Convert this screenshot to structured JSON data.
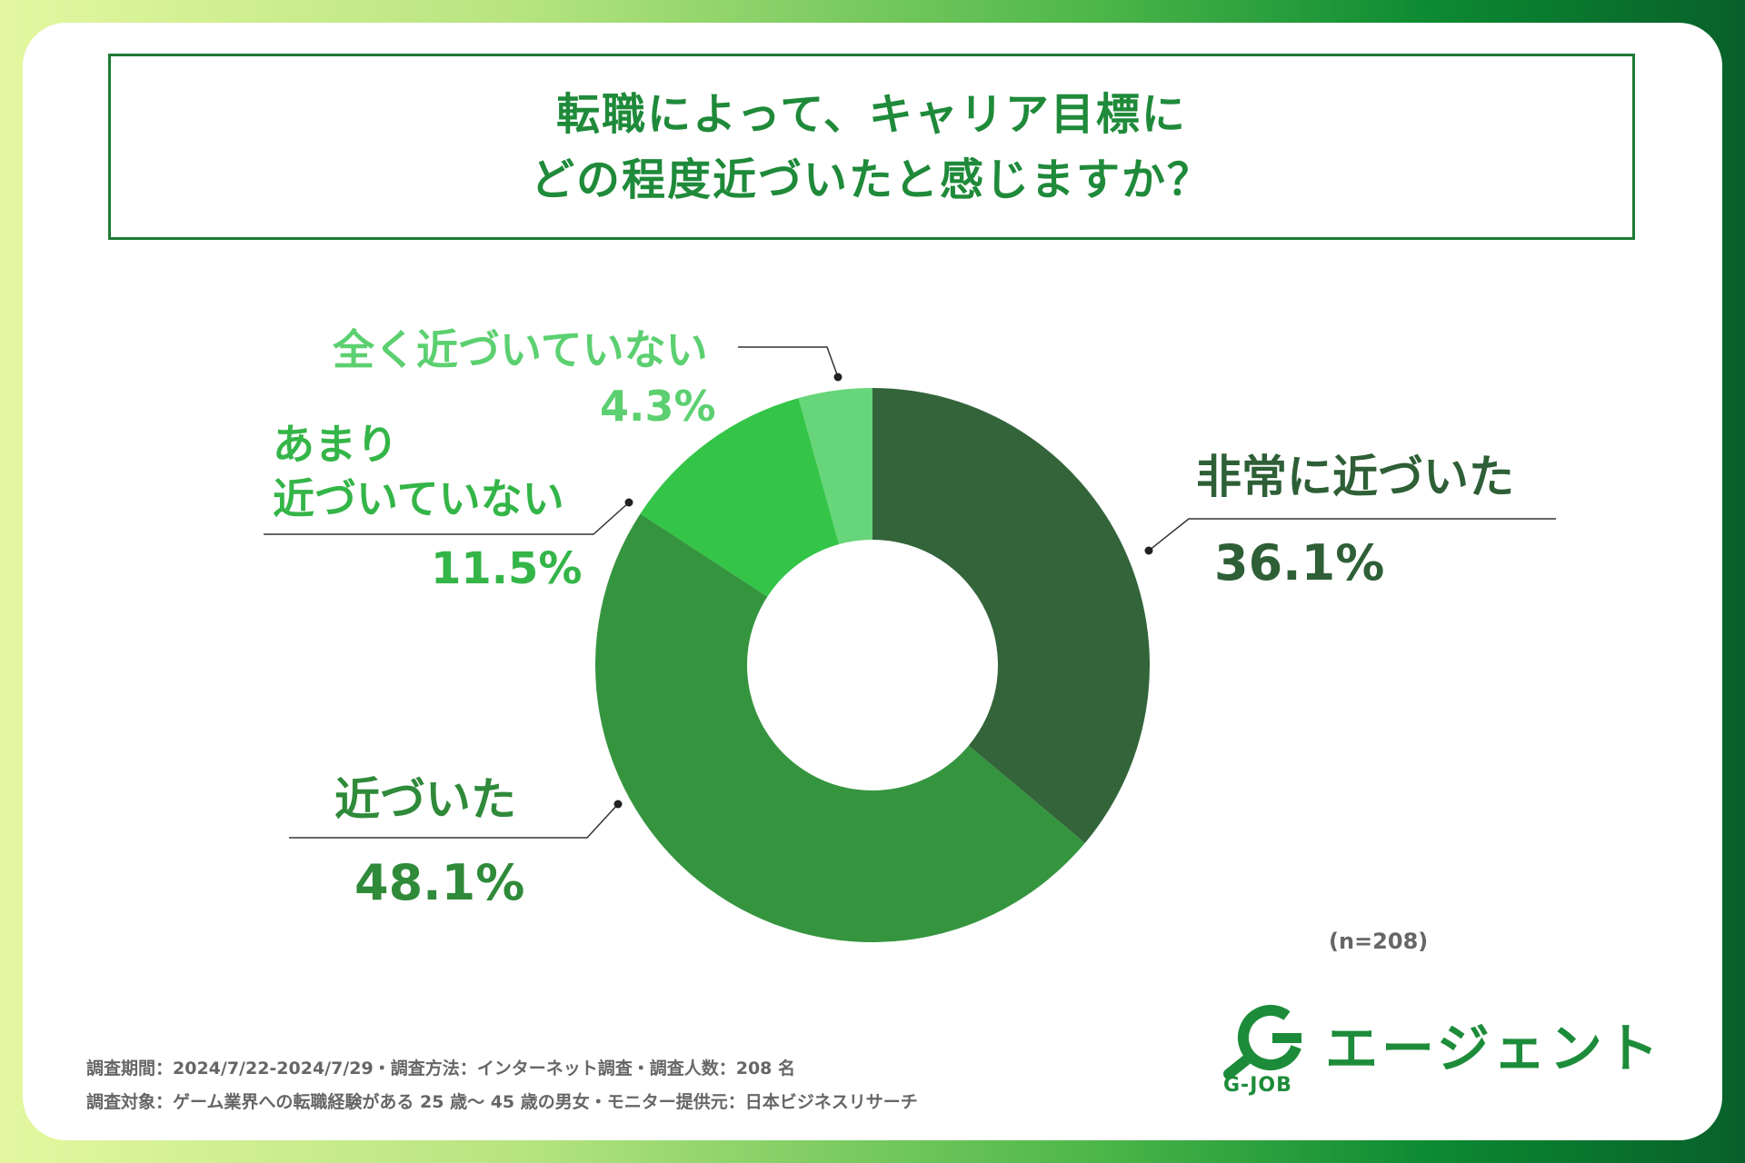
{
  "title": {
    "line1": "転職によって、キャリア目標に",
    "line2": "どの程度近づいたと感じますか？"
  },
  "chart_data": {
    "type": "pie",
    "donut": true,
    "categories": [
      "非常に近づいた",
      "近づいた",
      "あまり近づいていない",
      "全く近づいていない"
    ],
    "values": [
      36.1,
      48.1,
      11.5,
      4.3
    ],
    "value_labels": [
      "36.1%",
      "48.1%",
      "11.5%",
      "4.3%"
    ],
    "colors": [
      "#33643a",
      "#35953f",
      "#34c548",
      "#67d57a"
    ],
    "label_colors": [
      "#2e5f36",
      "#2f8a3a",
      "#34b548",
      "#5cd070"
    ],
    "sample_note": "(n=208)"
  },
  "labels": {
    "very_close_name": "非常に近づいた",
    "close_name": "近づいた",
    "not_much_line1": "あまり",
    "not_much_line2": "近づいていない",
    "not_at_all_name": "全く近づいていない"
  },
  "notes": {
    "survey_line1": "調査期間：2024/7/22-2024/7/29・調査方法：インターネット調査・調査人数：208 名",
    "survey_line2": "調査対象：ゲーム業界への転職経験がある 25 歳〜 45 歳の男女・モニター提供元：日本ビジネスリサーチ"
  },
  "logo": {
    "letter": "G",
    "sub": "G-JOB",
    "name": "エージェント",
    "color": "#1d8c3a"
  }
}
